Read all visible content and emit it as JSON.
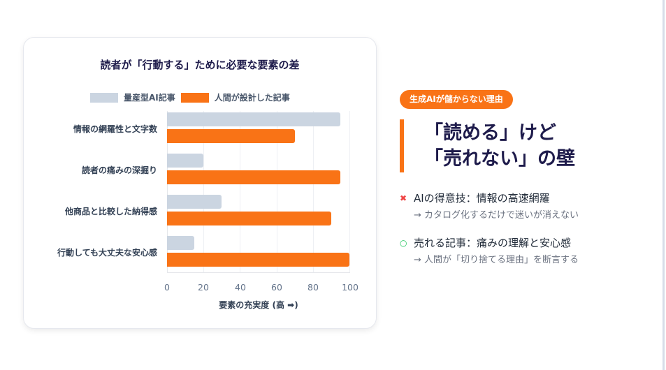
{
  "chart_data": {
    "type": "bar",
    "orientation": "horizontal",
    "title": "読者が「行動する」ために必要な要素の差",
    "categories": [
      "情報の網羅性と文字数",
      "読者の痛みの深掘り",
      "他商品と比較した納得感",
      "行動しても大丈夫な安心感"
    ],
    "series": [
      {
        "name": "量産型AI記事",
        "color": "#cbd5e1",
        "values": [
          95,
          20,
          30,
          15
        ]
      },
      {
        "name": "人間が設計した記事",
        "color": "#f97316",
        "values": [
          70,
          95,
          90,
          100
        ]
      }
    ],
    "xlabel": "要素の充実度 (高 ➡)",
    "ylabel": "",
    "xlim": [
      0,
      100
    ],
    "xticks": [
      "0",
      "20",
      "40",
      "60",
      "80",
      "100"
    ],
    "grid": true,
    "legend_position": "top"
  },
  "side": {
    "badge": "生成AIが儲からない理由",
    "headline_line1": "「読める」けど",
    "headline_line2": "「売れない」の壁",
    "points": [
      {
        "mark": "✖",
        "mark_color": "#ef4444",
        "main": "AIの得意技：情報の高速網羅",
        "sub": "→ カタログ化するだけで迷いが消えない"
      },
      {
        "mark": "○",
        "mark_color": "#22c55e",
        "main": "売れる記事：痛みの理解と安心感",
        "sub": "→ 人間が「切り捨てる理由」を断言する"
      }
    ]
  }
}
